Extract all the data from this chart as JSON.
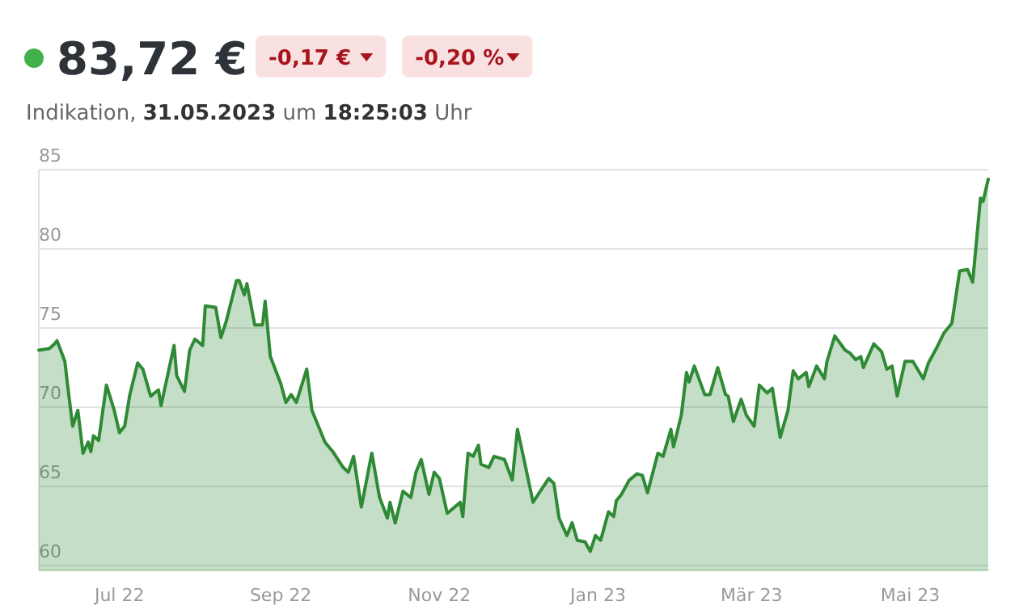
{
  "chart_data": {
    "type": "area",
    "title": "83,72 €",
    "subtitle": "Indikation, 31.05.2023 um 18:25:03 Uhr",
    "annotations": [
      "-0,17 €",
      "-0,20 %"
    ],
    "x": [
      "2022-05-31",
      "2022-06-04",
      "2022-06-06",
      "2022-06-07",
      "2022-06-10",
      "2022-06-11",
      "2022-06-13",
      "2022-06-15",
      "2022-06-17",
      "2022-06-19",
      "2022-06-20",
      "2022-06-21",
      "2022-06-23",
      "2022-06-26",
      "2022-06-29",
      "2022-07-01",
      "2022-07-03",
      "2022-07-05",
      "2022-07-08",
      "2022-07-10",
      "2022-07-13",
      "2022-07-16",
      "2022-07-17",
      "2022-07-22",
      "2022-07-23",
      "2022-07-26",
      "2022-07-28",
      "2022-07-30",
      "2022-08-02",
      "2022-08-03",
      "2022-08-07",
      "2022-08-09",
      "2022-08-11",
      "2022-08-15",
      "2022-08-16",
      "2022-08-18",
      "2022-08-19",
      "2022-08-22",
      "2022-08-25",
      "2022-08-26",
      "2022-08-28",
      "2022-09-01",
      "2022-09-03",
      "2022-09-05",
      "2022-09-07",
      "2022-09-11",
      "2022-09-13",
      "2022-09-18",
      "2022-09-21",
      "2022-09-25",
      "2022-09-27",
      "2022-09-29",
      "2022-10-02",
      "2022-10-06",
      "2022-10-09",
      "2022-10-12",
      "2022-10-13",
      "2022-10-15",
      "2022-10-18",
      "2022-10-21",
      "2022-10-23",
      "2022-10-25",
      "2022-10-28",
      "2022-10-30",
      "2022-11-01",
      "2022-11-04",
      "2022-11-09",
      "2022-11-10",
      "2022-11-12",
      "2022-11-14",
      "2022-11-16",
      "2022-11-17",
      "2022-11-20",
      "2022-11-22",
      "2022-11-26",
      "2022-11-29",
      "2022-12-01",
      "2022-12-03",
      "2022-12-07",
      "2022-12-09",
      "2022-12-13",
      "2022-12-15",
      "2022-12-17",
      "2022-12-20",
      "2022-12-22",
      "2022-12-24",
      "2022-12-27",
      "2022-12-29",
      "2022-12-31",
      "2023-01-02",
      "2023-01-05",
      "2023-01-07",
      "2023-01-08",
      "2023-01-10",
      "2023-01-13",
      "2023-01-16",
      "2023-01-18",
      "2023-01-20",
      "2023-01-24",
      "2023-01-26",
      "2023-01-29",
      "2023-01-30",
      "2023-02-02",
      "2023-02-04",
      "2023-02-05",
      "2023-02-07",
      "2023-02-11",
      "2023-02-13",
      "2023-02-16",
      "2023-02-19",
      "2023-02-20",
      "2023-02-22",
      "2023-02-25",
      "2023-02-27",
      "2023-03-02",
      "2023-03-04",
      "2023-03-07",
      "2023-03-09",
      "2023-03-12",
      "2023-03-15",
      "2023-03-17",
      "2023-03-19",
      "2023-03-22",
      "2023-03-23",
      "2023-03-26",
      "2023-03-29",
      "2023-03-30",
      "2023-04-02",
      "2023-04-06",
      "2023-04-08",
      "2023-04-10",
      "2023-04-12",
      "2023-04-13",
      "2023-04-17",
      "2023-04-20",
      "2023-04-22",
      "2023-04-24",
      "2023-04-26",
      "2023-04-29",
      "2023-05-02",
      "2023-05-06",
      "2023-05-08",
      "2023-05-11",
      "2023-05-14",
      "2023-05-17",
      "2023-05-20",
      "2023-05-23",
      "2023-05-25",
      "2023-05-28",
      "2023-05-29",
      "2023-05-31"
    ],
    "series": [
      {
        "color": "#2f8a35",
        "values": [
          73.6,
          73.7,
          74.0,
          74.2,
          72.9,
          71.5,
          68.8,
          69.8,
          67.1,
          67.8,
          67.2,
          68.2,
          67.9,
          71.4,
          69.8,
          68.4,
          68.8,
          70.8,
          72.8,
          72.4,
          70.7,
          71.1,
          70.1,
          73.9,
          72.0,
          71.0,
          73.6,
          74.3,
          73.9,
          76.4,
          76.3,
          74.4,
          75.4,
          78.0,
          78.0,
          77.1,
          77.8,
          75.2,
          75.2,
          76.7,
          73.2,
          71.5,
          70.3,
          70.8,
          70.3,
          72.4,
          69.8,
          67.8,
          67.2,
          66.2,
          65.9,
          66.9,
          63.7,
          67.1,
          64.3,
          63.0,
          64.0,
          62.7,
          64.7,
          64.3,
          65.9,
          66.7,
          64.5,
          65.9,
          65.5,
          63.3,
          64.0,
          63.1,
          67.1,
          66.9,
          67.6,
          66.4,
          66.2,
          66.9,
          66.7,
          65.4,
          68.6,
          67.1,
          64.0,
          64.5,
          65.5,
          65.2,
          63.0,
          61.9,
          62.7,
          61.6,
          61.5,
          60.9,
          61.9,
          61.6,
          63.4,
          63.1,
          64.1,
          64.5,
          65.4,
          65.8,
          65.7,
          64.6,
          67.1,
          66.9,
          68.6,
          67.5,
          69.5,
          72.2,
          71.6,
          72.6,
          70.8,
          70.8,
          72.5,
          70.8,
          70.7,
          69.1,
          70.5,
          69.5,
          68.8,
          71.4,
          70.9,
          71.2,
          68.1,
          69.8,
          72.3,
          71.8,
          72.2,
          71.3,
          72.6,
          71.8,
          72.9,
          74.5,
          73.6,
          73.4,
          73.0,
          73.2,
          72.5,
          74.0,
          73.5,
          72.4,
          72.6,
          70.7,
          72.9,
          72.9,
          71.8,
          72.8,
          73.7,
          74.7,
          75.3,
          78.6,
          78.7,
          77.9,
          83.2,
          83.0,
          84.4
        ]
      }
    ],
    "xlim": [
      "2022-05-31",
      "2023-05-31"
    ],
    "xticks": [
      {
        "value": "2022-07-01",
        "label": "Jul 22"
      },
      {
        "value": "2022-09-01",
        "label": "Sep 22"
      },
      {
        "value": "2022-11-01",
        "label": "Nov 22"
      },
      {
        "value": "2023-01-01",
        "label": "Jan 23"
      },
      {
        "value": "2023-03-01",
        "label": "Mär 23"
      },
      {
        "value": "2023-05-01",
        "label": "Mai 23"
      }
    ],
    "ylim": [
      59.7,
      85
    ],
    "yticks": [
      60,
      65,
      70,
      75,
      80,
      85
    ],
    "grid": "y"
  }
}
